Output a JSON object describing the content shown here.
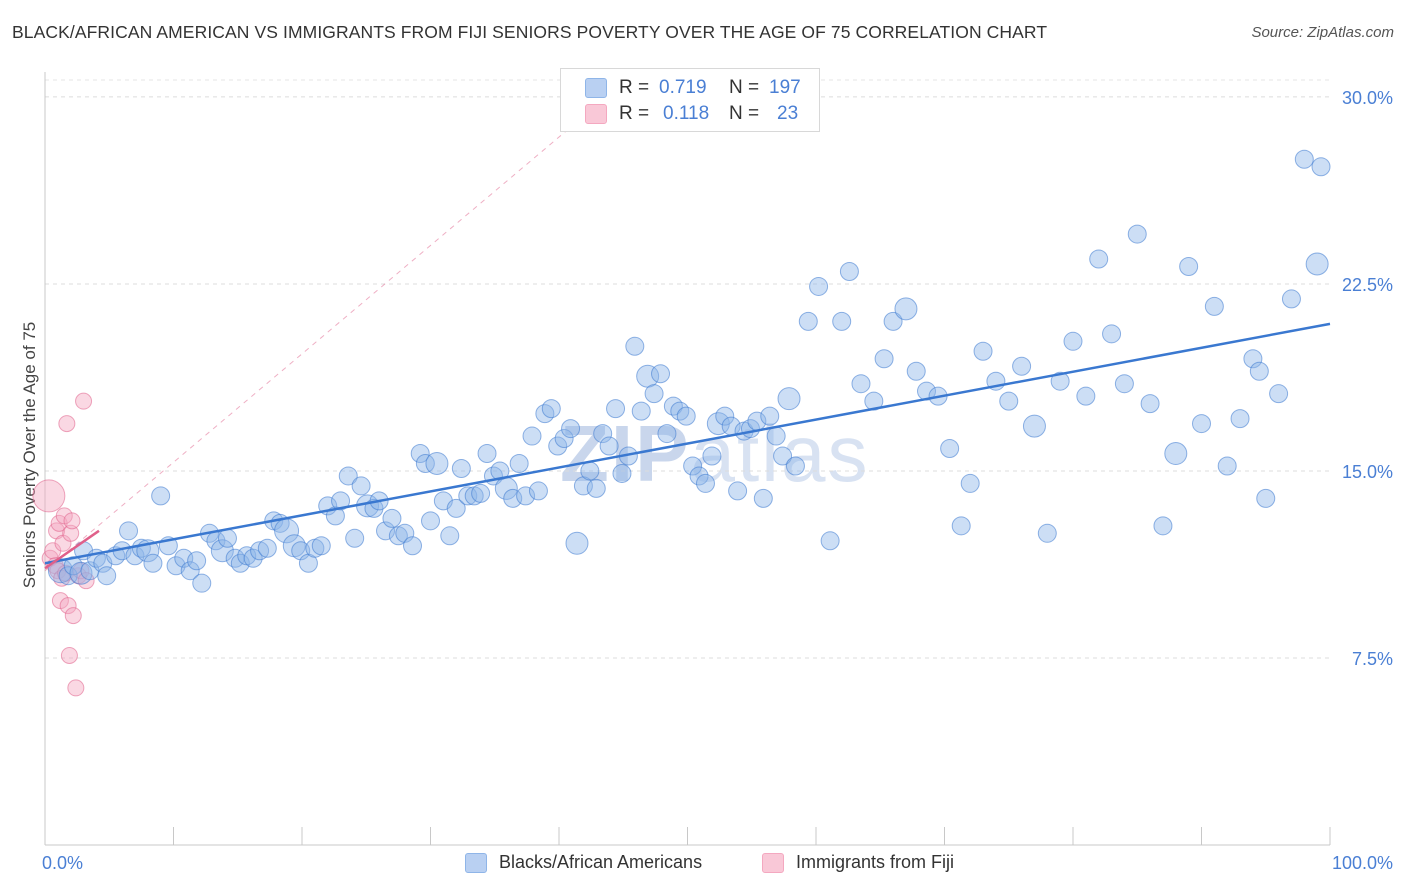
{
  "title": "BLACK/AFRICAN AMERICAN VS IMMIGRANTS FROM FIJI SENIORS POVERTY OVER THE AGE OF 75 CORRELATION CHART",
  "source": "Source: ZipAtlas.com",
  "watermark": {
    "zip": "ZIP",
    "atlas": "atlas"
  },
  "colors": {
    "blue": "#8fb5e8",
    "blue_line": "#3a78d0",
    "pink": "#f4a8c0",
    "pink_line": "#e0608a",
    "tick_text": "#4a7fd4"
  },
  "legend": {
    "rows": [
      {
        "r_label": "R =",
        "r_value": "0.719",
        "n_label": "N =",
        "n_value": "197"
      },
      {
        "r_label": "R =",
        "r_value": "0.118",
        "n_label": "N =",
        "n_value": "23"
      }
    ]
  },
  "bottom_legend": [
    "Blacks/African Americans",
    "Immigrants from Fiji"
  ],
  "chart_data": {
    "type": "scatter",
    "title": "BLACK/AFRICAN AMERICAN VS IMMIGRANTS FROM FIJI SENIORS POVERTY OVER THE AGE OF 75 CORRELATION CHART",
    "xlabel": "",
    "ylabel": "Seniors Poverty Over the Age of 75",
    "xlim": [
      0,
      100
    ],
    "ylim": [
      0,
      31
    ],
    "x_tick_labels": [
      "0.0%",
      "100.0%"
    ],
    "y_ticks": [
      7.5,
      15.0,
      22.5,
      30.0
    ],
    "y_tick_labels": [
      "7.5%",
      "15.0%",
      "22.5%",
      "30.0%"
    ],
    "grid": true,
    "legend_placement": "top-center",
    "series": [
      {
        "name": "Blacks/African Americans",
        "r": 0.719,
        "n": 197,
        "trend": {
          "x": [
            0,
            100
          ],
          "y": [
            11.3,
            20.9
          ]
        },
        "points": [
          [
            1.2,
            11.0
          ],
          [
            1.8,
            10.8
          ],
          [
            2.2,
            11.2
          ],
          [
            2.8,
            10.9
          ],
          [
            3.0,
            11.8
          ],
          [
            3.5,
            11.0
          ],
          [
            4.0,
            11.5
          ],
          [
            4.5,
            11.3
          ],
          [
            4.8,
            10.8
          ],
          [
            5.5,
            11.6
          ],
          [
            6.0,
            11.8
          ],
          [
            6.5,
            12.6
          ],
          [
            7.0,
            11.6
          ],
          [
            7.5,
            11.9
          ],
          [
            8.0,
            11.8
          ],
          [
            8.4,
            11.3
          ],
          [
            9.0,
            14.0
          ],
          [
            9.6,
            12.0
          ],
          [
            10.2,
            11.2
          ],
          [
            10.8,
            11.5
          ],
          [
            11.3,
            11.0
          ],
          [
            11.8,
            11.4
          ],
          [
            12.2,
            10.5
          ],
          [
            12.8,
            12.5
          ],
          [
            13.3,
            12.2
          ],
          [
            13.8,
            11.8
          ],
          [
            14.2,
            12.3
          ],
          [
            14.8,
            11.5
          ],
          [
            15.2,
            11.3
          ],
          [
            15.7,
            11.6
          ],
          [
            16.2,
            11.5
          ],
          [
            16.7,
            11.8
          ],
          [
            17.3,
            11.9
          ],
          [
            17.8,
            13.0
          ],
          [
            18.3,
            12.9
          ],
          [
            18.8,
            12.6
          ],
          [
            19.4,
            12.0
          ],
          [
            19.9,
            11.8
          ],
          [
            20.5,
            11.3
          ],
          [
            21.0,
            11.9
          ],
          [
            21.5,
            12.0
          ],
          [
            22.0,
            13.6
          ],
          [
            22.6,
            13.2
          ],
          [
            23.0,
            13.8
          ],
          [
            23.6,
            14.8
          ],
          [
            24.1,
            12.3
          ],
          [
            24.6,
            14.4
          ],
          [
            25.1,
            13.6
          ],
          [
            25.6,
            13.5
          ],
          [
            26.0,
            13.8
          ],
          [
            26.5,
            12.6
          ],
          [
            27.0,
            13.1
          ],
          [
            27.5,
            12.4
          ],
          [
            28.0,
            12.5
          ],
          [
            28.6,
            12.0
          ],
          [
            29.2,
            15.7
          ],
          [
            29.6,
            15.3
          ],
          [
            30.0,
            13.0
          ],
          [
            30.5,
            15.3
          ],
          [
            31.0,
            13.8
          ],
          [
            31.5,
            12.4
          ],
          [
            32.0,
            13.5
          ],
          [
            32.4,
            15.1
          ],
          [
            32.9,
            14.0
          ],
          [
            33.4,
            14.0
          ],
          [
            33.9,
            14.1
          ],
          [
            34.4,
            15.7
          ],
          [
            34.9,
            14.8
          ],
          [
            35.4,
            15.0
          ],
          [
            35.9,
            14.3
          ],
          [
            36.4,
            13.9
          ],
          [
            36.9,
            15.3
          ],
          [
            37.4,
            14.0
          ],
          [
            37.9,
            16.4
          ],
          [
            38.4,
            14.2
          ],
          [
            38.9,
            17.3
          ],
          [
            39.4,
            17.5
          ],
          [
            39.9,
            16.0
          ],
          [
            40.4,
            16.3
          ],
          [
            40.9,
            16.7
          ],
          [
            41.4,
            12.1
          ],
          [
            41.9,
            14.4
          ],
          [
            42.4,
            15.0
          ],
          [
            42.9,
            14.3
          ],
          [
            43.4,
            16.5
          ],
          [
            43.9,
            16.0
          ],
          [
            44.4,
            17.5
          ],
          [
            44.9,
            14.9
          ],
          [
            45.4,
            15.6
          ],
          [
            45.9,
            20.0
          ],
          [
            46.4,
            17.4
          ],
          [
            46.9,
            18.8
          ],
          [
            47.4,
            18.1
          ],
          [
            47.9,
            18.9
          ],
          [
            48.4,
            16.5
          ],
          [
            48.9,
            17.6
          ],
          [
            49.4,
            17.4
          ],
          [
            49.9,
            17.2
          ],
          [
            50.4,
            15.2
          ],
          [
            50.9,
            14.8
          ],
          [
            51.4,
            14.5
          ],
          [
            51.9,
            15.6
          ],
          [
            52.4,
            16.9
          ],
          [
            52.9,
            17.2
          ],
          [
            53.4,
            16.8
          ],
          [
            53.9,
            14.2
          ],
          [
            54.4,
            16.6
          ],
          [
            54.9,
            16.7
          ],
          [
            55.4,
            17.0
          ],
          [
            55.9,
            13.9
          ],
          [
            56.4,
            17.2
          ],
          [
            56.9,
            16.4
          ],
          [
            57.4,
            15.6
          ],
          [
            57.9,
            17.9
          ],
          [
            58.4,
            15.2
          ],
          [
            59.4,
            21.0
          ],
          [
            60.2,
            22.4
          ],
          [
            61.1,
            12.2
          ],
          [
            62.0,
            21.0
          ],
          [
            62.6,
            23.0
          ],
          [
            63.5,
            18.5
          ],
          [
            64.5,
            17.8
          ],
          [
            65.3,
            19.5
          ],
          [
            66.0,
            21.0
          ],
          [
            67.0,
            21.5
          ],
          [
            67.8,
            19.0
          ],
          [
            68.6,
            18.2
          ],
          [
            69.5,
            18.0
          ],
          [
            70.4,
            15.9
          ],
          [
            71.3,
            12.8
          ],
          [
            72.0,
            14.5
          ],
          [
            73.0,
            19.8
          ],
          [
            74.0,
            18.6
          ],
          [
            75.0,
            17.8
          ],
          [
            76.0,
            19.2
          ],
          [
            77.0,
            16.8
          ],
          [
            78.0,
            12.5
          ],
          [
            79.0,
            18.6
          ],
          [
            80.0,
            20.2
          ],
          [
            81.0,
            18.0
          ],
          [
            82.0,
            23.5
          ],
          [
            83.0,
            20.5
          ],
          [
            84.0,
            18.5
          ],
          [
            85.0,
            24.5
          ],
          [
            86.0,
            17.7
          ],
          [
            87.0,
            12.8
          ],
          [
            88.0,
            15.7
          ],
          [
            89.0,
            23.2
          ],
          [
            90.0,
            16.9
          ],
          [
            91.0,
            21.6
          ],
          [
            92.0,
            15.2
          ],
          [
            93.0,
            17.1
          ],
          [
            94.0,
            19.5
          ],
          [
            95.0,
            13.9
          ],
          [
            96.0,
            18.1
          ],
          [
            97.0,
            21.9
          ],
          [
            98.0,
            27.5
          ],
          [
            99.0,
            23.3
          ],
          [
            99.3,
            27.2
          ],
          [
            94.5,
            19.0
          ]
        ]
      },
      {
        "name": "Immigrants from Fiji",
        "r": 0.118,
        "n": 23,
        "trend": {
          "x": [
            0,
            4.2
          ],
          "y": [
            11.1,
            12.6
          ]
        },
        "points": [
          [
            0.3,
            14.0
          ],
          [
            0.4,
            11.5
          ],
          [
            0.6,
            11.8
          ],
          [
            0.8,
            11.2
          ],
          [
            0.9,
            12.6
          ],
          [
            1.0,
            11.0
          ],
          [
            1.1,
            12.9
          ],
          [
            1.2,
            9.8
          ],
          [
            1.3,
            10.7
          ],
          [
            1.4,
            12.1
          ],
          [
            1.5,
            13.2
          ],
          [
            1.6,
            10.9
          ],
          [
            1.7,
            16.9
          ],
          [
            1.8,
            9.6
          ],
          [
            1.9,
            7.6
          ],
          [
            2.0,
            12.5
          ],
          [
            2.1,
            13.0
          ],
          [
            2.2,
            9.2
          ],
          [
            2.4,
            6.3
          ],
          [
            2.6,
            10.8
          ],
          [
            2.8,
            11.0
          ],
          [
            3.0,
            17.8
          ],
          [
            3.2,
            10.6
          ]
        ]
      }
    ]
  }
}
